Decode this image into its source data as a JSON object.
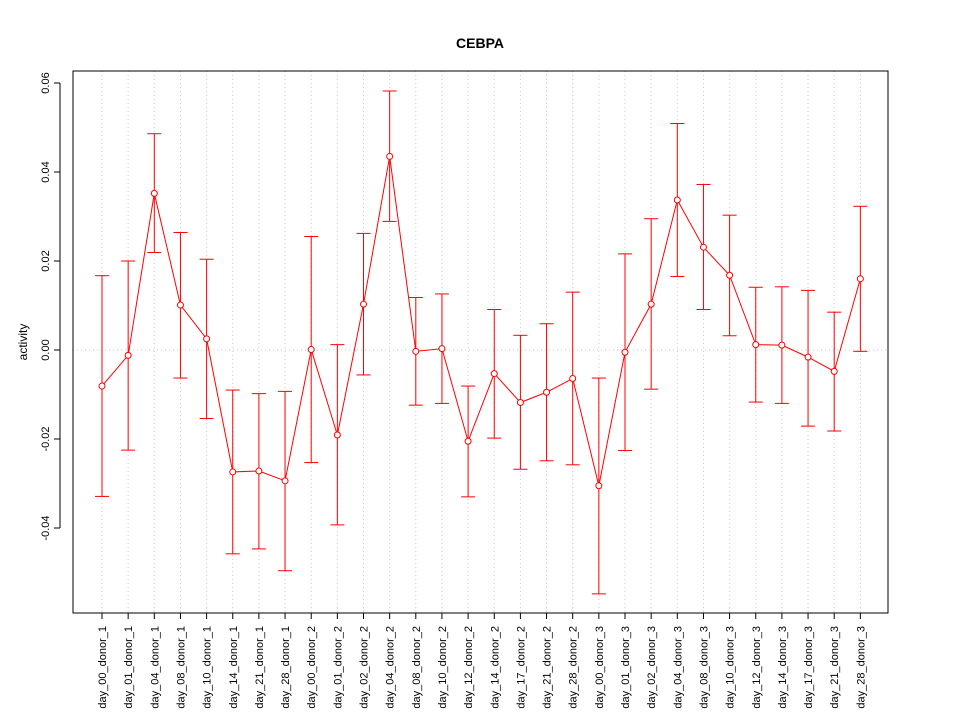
{
  "chart_data": {
    "type": "line",
    "title": "CEBPA",
    "xlabel": "",
    "ylabel": "activity",
    "ylim": [
      -0.059,
      0.06
    ],
    "yticks": [
      -0.04,
      -0.02,
      0.0,
      0.02,
      0.04,
      0.06
    ],
    "ytick_labels": [
      "-0.04",
      "-0.02",
      "0.00",
      "0.02",
      "0.04",
      "0.06"
    ],
    "grid": true,
    "categories": [
      "day_00_donor_1",
      "day_01_donor_1",
      "day_04_donor_1",
      "day_08_donor_1",
      "day_10_donor_1",
      "day_14_donor_1",
      "day_21_donor_1",
      "day_28_donor_1",
      "day_00_donor_2",
      "day_01_donor_2",
      "day_02_donor_2",
      "day_04_donor_2",
      "day_08_donor_2",
      "day_10_donor_2",
      "day_12_donor_2",
      "day_14_donor_2",
      "day_17_donor_2",
      "day_21_donor_2",
      "day_28_donor_2",
      "day_00_donor_3",
      "day_01_donor_3",
      "day_02_donor_3",
      "day_04_donor_3",
      "day_08_donor_3",
      "day_10_donor_3",
      "day_12_donor_3",
      "day_14_donor_3",
      "day_17_donor_3",
      "day_21_donor_3",
      "day_28_donor_3"
    ],
    "series": [
      {
        "color": "#ff0000",
        "values": [
          -0.0081,
          -0.0012,
          0.0352,
          0.0101,
          0.0025,
          -0.0274,
          -0.0272,
          -0.0294,
          0.0001,
          -0.0191,
          0.0103,
          0.0435,
          -0.0003,
          0.0003,
          -0.0205,
          -0.0053,
          -0.0118,
          -0.0095,
          -0.0064,
          -0.0305,
          -0.0005,
          0.0103,
          0.0337,
          0.0231,
          0.0168,
          0.0012,
          0.0011,
          -0.0016,
          -0.0048,
          0.016
        ],
        "upper": [
          0.0167,
          0.02,
          0.0486,
          0.0264,
          0.0204,
          -0.009,
          -0.0098,
          -0.0093,
          0.0255,
          0.0012,
          0.0262,
          0.0582,
          0.0118,
          0.0126,
          -0.0081,
          0.0091,
          0.0033,
          0.0059,
          0.013,
          -0.0063,
          0.0216,
          0.0295,
          0.0509,
          0.0372,
          0.0303,
          0.0141,
          0.0142,
          0.0134,
          0.0085,
          0.0323
        ],
        "lower": [
          -0.0329,
          -0.0225,
          0.0219,
          -0.0063,
          -0.0154,
          -0.0458,
          -0.0447,
          -0.0496,
          -0.0253,
          -0.0393,
          -0.0056,
          0.0289,
          -0.0124,
          -0.012,
          -0.033,
          -0.0198,
          -0.0268,
          -0.0249,
          -0.0258,
          -0.0548,
          -0.0226,
          -0.0088,
          0.0165,
          0.0091,
          0.0032,
          -0.0117,
          -0.012,
          -0.0171,
          -0.0182,
          -0.0003
        ]
      }
    ]
  }
}
